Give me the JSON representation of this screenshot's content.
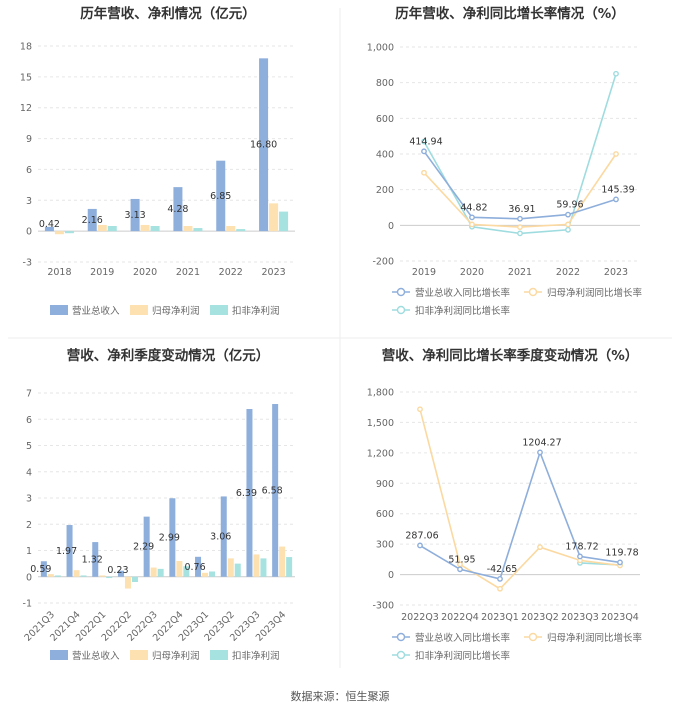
{
  "source": "数据来源：恒生聚源",
  "colors": {
    "revenue": "#8eaedb",
    "net_profit": "#fde1b1",
    "deducted_profit": "#a6e2e0",
    "line_revenue": "#8eaedb",
    "line_net": "#fbd9a0",
    "line_deducted": "#9fdcdf"
  },
  "chart_data": [
    {
      "type": "bar",
      "title": "历年营收、净利情况（亿元）",
      "categories": [
        "2018",
        "2019",
        "2020",
        "2021",
        "2022",
        "2023"
      ],
      "ylim": [
        -3,
        18
      ],
      "yticks": [
        "18",
        "15",
        "12",
        "9",
        "6",
        "3",
        "0",
        "-3"
      ],
      "ytick_values": [
        18,
        15,
        12,
        9,
        6,
        3,
        0,
        -3
      ],
      "series": [
        {
          "name": "营业总收入",
          "values": [
            0.42,
            2.16,
            3.13,
            4.28,
            6.85,
            16.8
          ],
          "labels": [
            "0.42",
            "2.16",
            "3.13",
            "4.28",
            "6.85",
            "16.80"
          ]
        },
        {
          "name": "归母净利润",
          "values": [
            -0.3,
            0.6,
            0.6,
            0.5,
            0.5,
            2.7
          ]
        },
        {
          "name": "扣非净利润",
          "values": [
            -0.2,
            0.5,
            0.5,
            0.3,
            0.2,
            1.9
          ]
        }
      ]
    },
    {
      "type": "line",
      "title": "历年营收、净利同比增长率情况（%）",
      "categories": [
        "2019",
        "2020",
        "2021",
        "2022",
        "2023"
      ],
      "ylim": [
        -200,
        1000
      ],
      "yticks": [
        "1,000",
        "800",
        "600",
        "400",
        "200",
        "0",
        "-200"
      ],
      "ytick_values": [
        1000,
        800,
        600,
        400,
        200,
        0,
        -200
      ],
      "series": [
        {
          "name": "营业总收入同比增长率",
          "values": [
            414.94,
            44.82,
            36.91,
            59.96,
            145.39
          ],
          "labels": [
            "414.94",
            "44.82",
            "36.91",
            "59.96",
            "145.39"
          ]
        },
        {
          "name": "归母净利润同比增长率",
          "values": [
            295,
            5,
            -10,
            5,
            400
          ]
        },
        {
          "name": "扣非净利润同比增长率",
          "values": [
            470,
            -8,
            -45,
            -25,
            850
          ]
        }
      ]
    },
    {
      "type": "bar",
      "title": "营收、净利季度变动情况（亿元）",
      "categories": [
        "2021Q3",
        "2021Q4",
        "2022Q1",
        "2022Q2",
        "2022Q3",
        "2022Q4",
        "2023Q1",
        "2023Q2",
        "2023Q3",
        "2023Q4"
      ],
      "ylim": [
        -1,
        7
      ],
      "yticks": [
        "7",
        "6",
        "5",
        "4",
        "3",
        "2",
        "1",
        "0",
        "-1"
      ],
      "ytick_values": [
        7,
        6,
        5,
        4,
        3,
        2,
        1,
        0,
        -1
      ],
      "series": [
        {
          "name": "营业总收入",
          "values": [
            0.59,
            1.97,
            1.32,
            0.23,
            2.29,
            2.99,
            0.76,
            3.06,
            6.39,
            6.58
          ],
          "labels": [
            "0.59",
            "1.97",
            "1.32",
            "0.23",
            "2.29",
            "2.99",
            "0.76",
            "3.06",
            "6.39",
            "6.58"
          ]
        },
        {
          "name": "归母净利润",
          "values": [
            0.1,
            0.25,
            0.05,
            -0.45,
            0.35,
            0.6,
            0.15,
            0.7,
            0.85,
            1.15
          ]
        },
        {
          "name": "扣非净利润",
          "values": [
            0.05,
            0.05,
            -0.05,
            -0.2,
            0.3,
            0.4,
            0.2,
            0.5,
            0.7,
            0.75
          ]
        }
      ]
    },
    {
      "type": "line",
      "title": "营收、净利同比增长率季度变动情况（%）",
      "categories": [
        "2022Q3",
        "2022Q4",
        "2023Q1",
        "2023Q2",
        "2023Q3",
        "2023Q4"
      ],
      "ylim": [
        -300,
        1800
      ],
      "yticks": [
        "1,800",
        "1,500",
        "1,200",
        "900",
        "600",
        "300",
        "0",
        "-300"
      ],
      "ytick_values": [
        1800,
        1500,
        1200,
        900,
        600,
        300,
        0,
        -300
      ],
      "series": [
        {
          "name": "营业总收入同比增长率",
          "values": [
            287.06,
            51.95,
            -42.65,
            1204.27,
            178.72,
            119.78
          ],
          "labels": [
            "287.06",
            "51.95",
            "-42.65",
            "1204.27",
            "178.72",
            "119.78"
          ]
        },
        {
          "name": "归母净利润同比增长率",
          "values": [
            1630,
            100,
            -140,
            270,
            140,
            90
          ]
        },
        {
          "name": "扣非净利润同比增长率",
          "values": [
            null,
            null,
            null,
            null,
            115,
            95
          ]
        }
      ]
    }
  ]
}
